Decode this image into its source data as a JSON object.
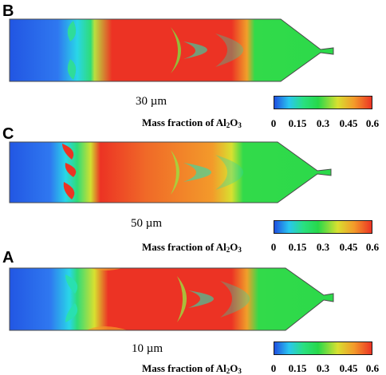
{
  "panels": [
    {
      "letter": "B",
      "size_label": "30 µm"
    },
    {
      "letter": "C",
      "size_label": "50 µm"
    },
    {
      "letter": "A",
      "size_label": "10 µm"
    }
  ],
  "colorbar": {
    "title_prefix": "Mass fraction of Al",
    "title_sub1": "2",
    "title_mid": "O",
    "title_sub2": "3",
    "ticks": [
      "0",
      "0.15",
      "0.3",
      "0.45",
      "0.6"
    ]
  },
  "colors": {
    "blue": "#1f4fe0",
    "cyan": "#29d6e8",
    "green": "#27d84a",
    "yellow": "#d8e030",
    "orange": "#f39a2a",
    "red": "#ec3324",
    "outline": "#4a4a4a"
  }
}
